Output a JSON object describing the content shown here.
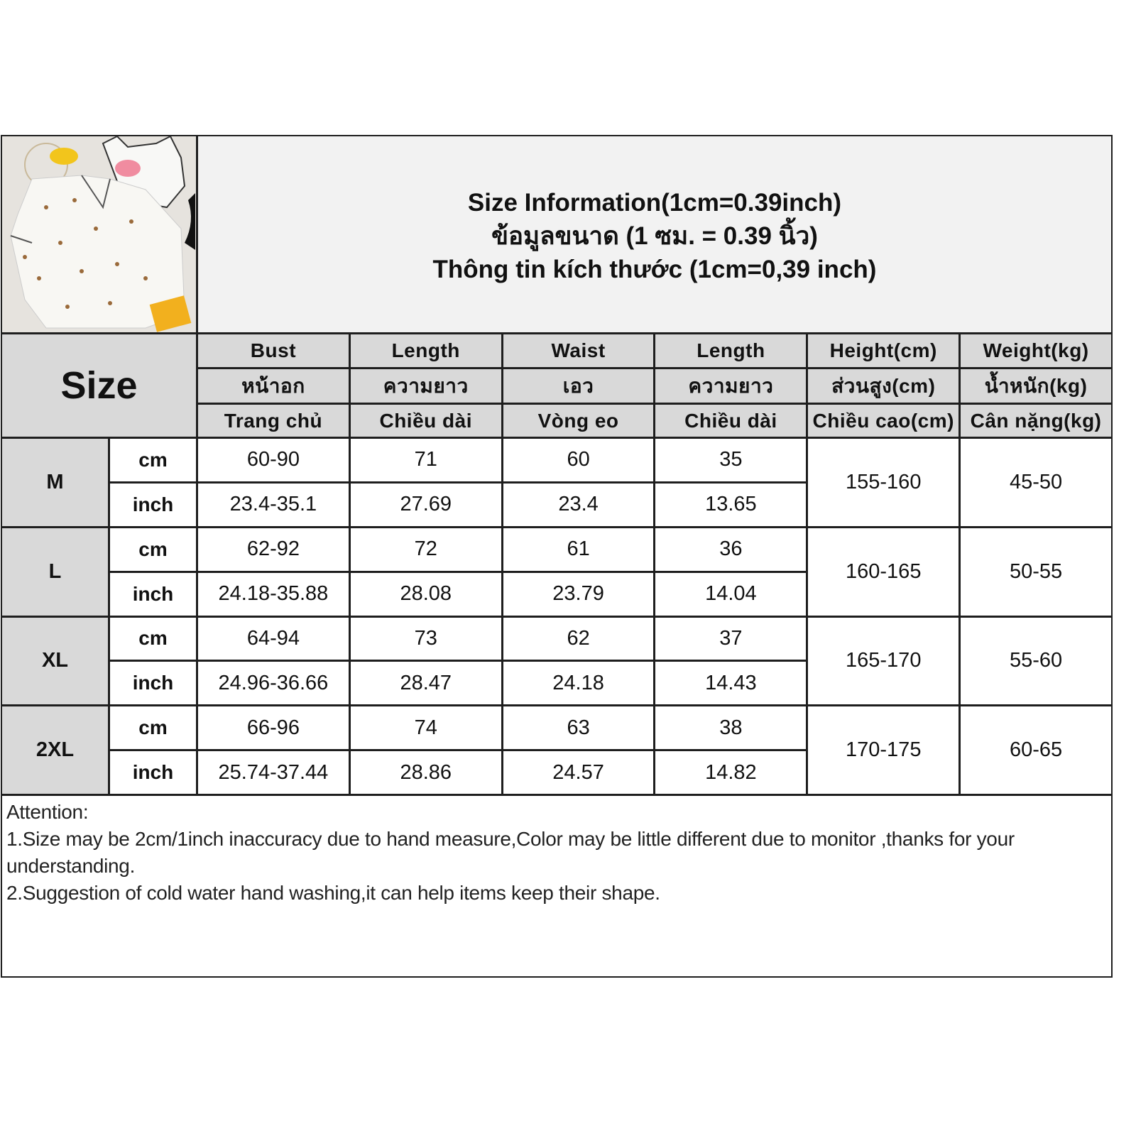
{
  "title": {
    "line1": "Size Information(1cm=0.39inch)",
    "line2": "ข้อมูลขนาด (1 ซม. = 0.39 นิ้ว)",
    "line3": "Thông tin kích thước (1cm=0,39 inch)"
  },
  "size_header": "Size",
  "columns": [
    {
      "en": "Bust",
      "th": "หน้าอก",
      "vi": "Trang chủ"
    },
    {
      "en": "Length",
      "th": "ความยาว",
      "vi": "Chiều dài"
    },
    {
      "en": "Waist",
      "th": "เอว",
      "vi": "Vòng eo"
    },
    {
      "en": "Length",
      "th": "ความยาว",
      "vi": "Chiều dài"
    },
    {
      "en": "Height(cm)",
      "th": "ส่วนสูง(cm)",
      "vi": "Chiều cao(cm)"
    },
    {
      "en": "Weight(kg)",
      "th": "น้ำหนัก(kg)",
      "vi": "Cân nặng(kg)"
    }
  ],
  "units": {
    "cm": "cm",
    "inch": "inch"
  },
  "sizes": [
    {
      "size": "M",
      "cm": [
        "60-90",
        "71",
        "60",
        "35"
      ],
      "inch": [
        "23.4-35.1",
        "27.69",
        "23.4",
        "13.65"
      ],
      "height": "155-160",
      "weight": "45-50"
    },
    {
      "size": "L",
      "cm": [
        "62-92",
        "72",
        "61",
        "36"
      ],
      "inch": [
        "24.18-35.88",
        "28.08",
        "23.79",
        "14.04"
      ],
      "height": "160-165",
      "weight": "50-55"
    },
    {
      "size": "XL",
      "cm": [
        "64-94",
        "73",
        "62",
        "37"
      ],
      "inch": [
        "24.96-36.66",
        "28.47",
        "24.18",
        "14.43"
      ],
      "height": "165-170",
      "weight": "55-60"
    },
    {
      "size": "2XL",
      "cm": [
        "66-96",
        "74",
        "63",
        "38"
      ],
      "inch": [
        "25.74-37.44",
        "28.86",
        "24.57",
        "14.82"
      ],
      "height": "170-175",
      "weight": "60-65"
    }
  ],
  "attention": {
    "heading": "Attention:",
    "notes": [
      "1.Size may be 2cm/1inch inaccuracy due to hand measure,Color may be little different due to monitor ,thanks for your understanding.",
      "2.Suggestion of cold water hand washing,it can help items keep their shape."
    ]
  },
  "colors": {
    "header_gray": "#d9d9d9",
    "title_bg": "#f2f2f2",
    "border": "#1e1e1e"
  }
}
